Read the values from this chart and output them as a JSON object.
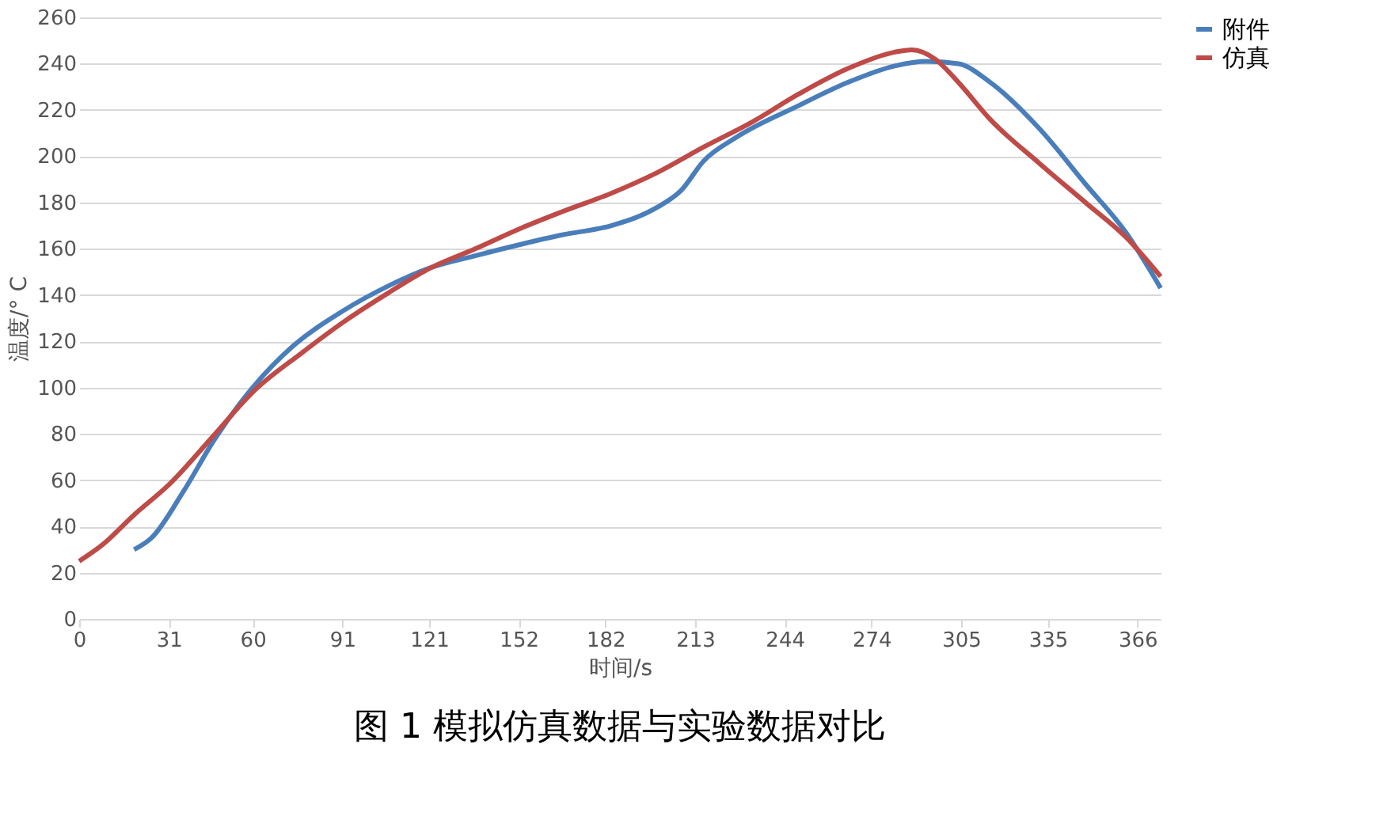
{
  "chart_data": {
    "type": "line",
    "title": "图 1 模拟仿真数据与实验数据对比",
    "xlabel": "时间/s",
    "ylabel": "温度/° C",
    "xlim": [
      0,
      374
    ],
    "xticks": [
      0,
      31,
      60,
      91,
      121,
      152,
      182,
      213,
      244,
      274,
      305,
      335,
      366
    ],
    "ylim": [
      0,
      260
    ],
    "yticks": [
      0,
      20,
      40,
      60,
      80,
      100,
      120,
      140,
      160,
      180,
      200,
      220,
      240,
      260
    ],
    "grid": "y",
    "legend": "right",
    "marker": "none",
    "line_style": "solid",
    "series": [
      {
        "name": "附件",
        "color": "#4a7ebb",
        "x": [
          19,
          25,
          36,
          47,
          60,
          74,
          91,
          107,
          122,
          137,
          153,
          167,
          184,
          200,
          208,
          216,
          227,
          249,
          266,
          282,
          293,
          304,
          315,
          332,
          348,
          362,
          374
        ],
        "values": [
          30,
          35,
          55,
          78,
          100,
          118,
          133,
          144,
          152,
          157,
          162,
          166,
          170,
          178,
          185,
          198,
          208,
          222,
          232,
          239,
          241,
          240,
          232,
          212,
          188,
          167,
          143
        ]
      },
      {
        "name": "仿真",
        "color": "#be4b48",
        "x": [
          0,
          8,
          19,
          31,
          47,
          60,
          77,
          91,
          107,
          122,
          137,
          153,
          167,
          184,
          200,
          216,
          233,
          249,
          266,
          282,
          288,
          296,
          304,
          315,
          332,
          348,
          362,
          374
        ],
        "values": [
          25,
          32,
          45,
          58,
          80,
          98,
          115,
          128,
          141,
          152,
          160,
          169,
          176,
          184,
          193,
          204,
          215,
          227,
          238,
          245,
          246,
          242,
          232,
          216,
          197,
          180,
          165,
          148
        ]
      }
    ]
  }
}
